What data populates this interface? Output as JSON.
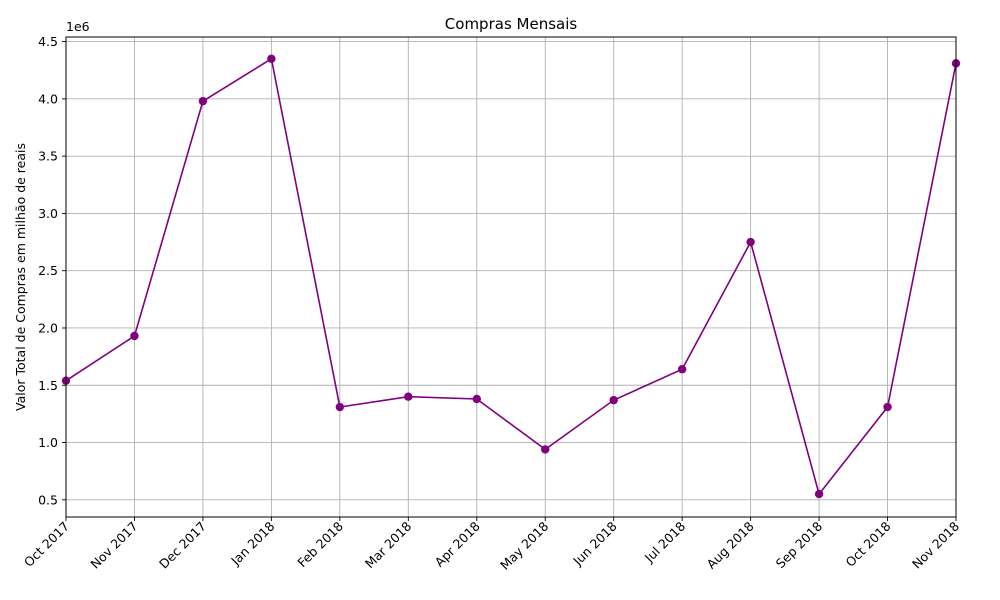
{
  "chart_data": {
    "type": "line",
    "title": "Compras Mensais",
    "xlabel": "",
    "ylabel": "Valor Total de Compras em milhão de reais",
    "y_offset_label": "1e6",
    "categories": [
      "Oct 2017",
      "Nov 2017",
      "Dec 2017",
      "Jan 2018",
      "Feb 2018",
      "Mar 2018",
      "Apr 2018",
      "May 2018",
      "Jun 2018",
      "Jul 2018",
      "Aug 2018",
      "Sep 2018",
      "Oct 2018",
      "Nov 2018"
    ],
    "series": [
      {
        "values": [
          1540000,
          1930000,
          3980000,
          4350000,
          1310000,
          1400000,
          1380000,
          940000,
          1370000,
          1640000,
          2750000,
          550000,
          1310000,
          4310000
        ],
        "color": "#800080",
        "marker": "circle"
      }
    ],
    "ylim": [
      350000,
      4540000
    ],
    "yticks": [
      500000,
      1000000,
      1500000,
      2000000,
      2500000,
      3000000,
      3500000,
      4000000,
      4500000
    ],
    "ytick_labels": [
      "0.5",
      "1.0",
      "1.5",
      "2.0",
      "2.5",
      "3.0",
      "3.5",
      "4.0",
      "4.5"
    ],
    "grid": true,
    "legend": "none"
  }
}
